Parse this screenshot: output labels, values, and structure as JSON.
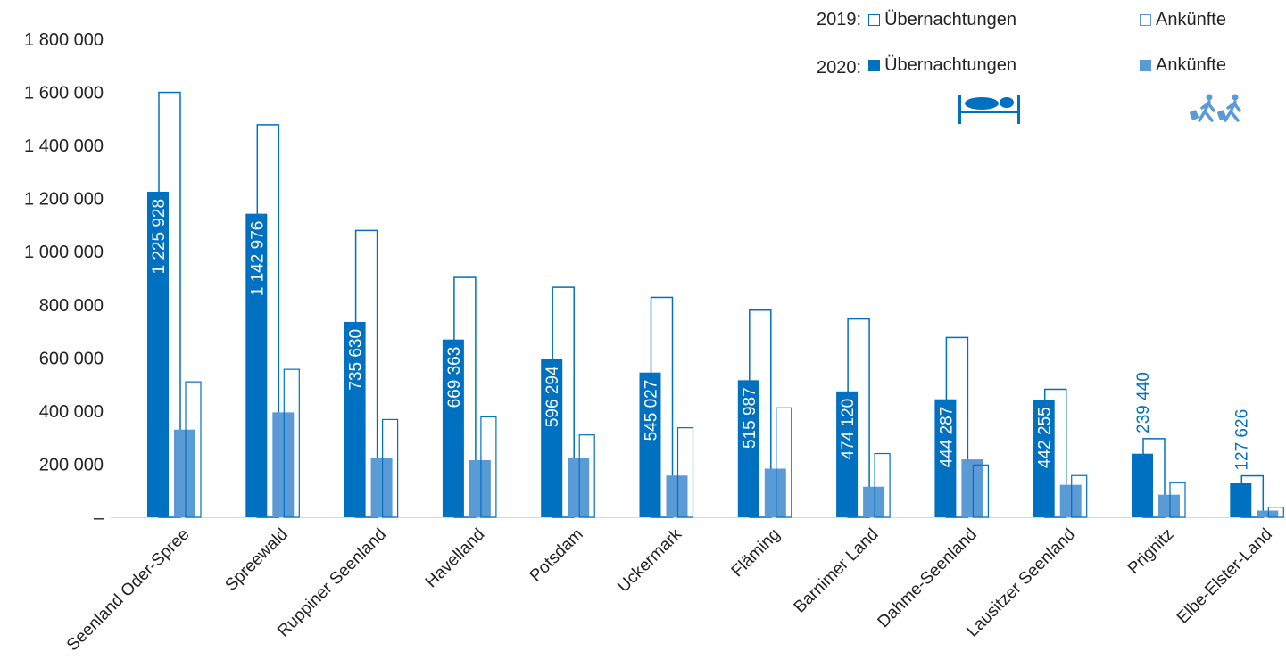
{
  "chart_data": {
    "type": "bar",
    "categories": [
      "Seenland Oder-Spree",
      "Spreewald",
      "Ruppiner Seenland",
      "Havelland",
      "Potsdam",
      "Uckermark",
      "Fläming",
      "Barnimer Land",
      "Dahme-Seenland",
      "Lausitzer Seenland",
      "Prignitz",
      "Elbe-Elster-Land"
    ],
    "series": [
      {
        "name": "2020 Übernachtungen",
        "values": [
          1225928,
          1142976,
          735630,
          669363,
          596294,
          545027,
          515987,
          474120,
          444287,
          442255,
          239440,
          127626
        ],
        "labels": [
          "1 225 928",
          "1 142 976",
          "735 630",
          "669 363",
          "596 294",
          "545 027",
          "515 987",
          "474 120",
          "444 287",
          "442 255",
          "239 440",
          "127 626"
        ]
      },
      {
        "name": "2019 Übernachtungen",
        "values": [
          1600000,
          1478000,
          1080000,
          903000,
          866000,
          828000,
          780000,
          747000,
          677000,
          482000,
          296000,
          156000
        ]
      },
      {
        "name": "2020 Ankünfte",
        "values": [
          330000,
          395000,
          222000,
          215000,
          223000,
          157000,
          183000,
          115000,
          218000,
          122000,
          85000,
          25000
        ]
      },
      {
        "name": "2019 Ankünfte",
        "values": [
          510000,
          557000,
          368000,
          378000,
          310000,
          337000,
          412000,
          240000,
          197000,
          157000,
          130000,
          38000
        ]
      }
    ],
    "y_ticks": [
      "–",
      "200 000",
      "400 000",
      "600 000",
      "800 000",
      "1 000 000",
      "1 200 000",
      "1 400 000",
      "1 600 000",
      "1 800 000"
    ],
    "ylim": [
      0,
      1800000
    ],
    "grid": false,
    "legend_position": "top-right",
    "colors": {
      "dark": "#0070c0",
      "light": "#5b9bd5",
      "outline": "#0070c0"
    }
  },
  "legend": {
    "year_2019": "2019:",
    "year_2020": "2020:",
    "overnight_label": "Übernachtungen",
    "arrivals_label": "Ankünfte"
  }
}
